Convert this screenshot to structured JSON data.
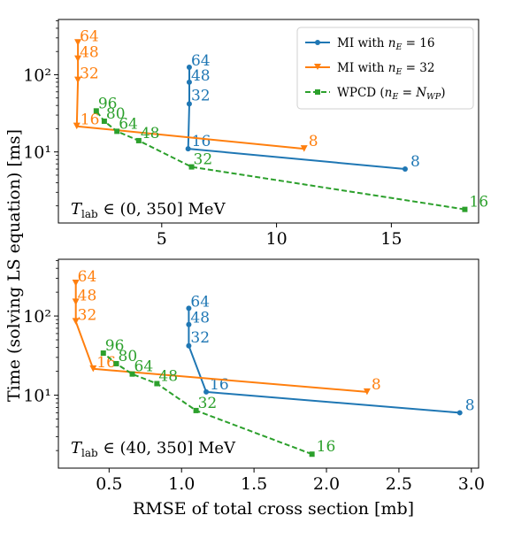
{
  "chart_data": [
    {
      "type": "line",
      "xscale": "linear",
      "yscale": "log",
      "xlim": [
        0.5,
        18.8
      ],
      "ylim": [
        1.2,
        520
      ],
      "xticks": [
        5,
        10,
        15
      ],
      "xtick_labels": [
        "5",
        "10",
        "15"
      ],
      "yticks": [
        10,
        100
      ],
      "ytick_labels": [
        "10¹",
        "10²"
      ],
      "annotation": "T_lab ∈ (0, 350] MeV",
      "legend": {
        "position": "top-right",
        "entries": [
          "MI with n_E = 16",
          "MI with n_E = 32",
          "WPCD (n_E = N_WP)"
        ]
      },
      "series": [
        {
          "name": "MI with n_E = 16",
          "color": "#1f77b4",
          "marker": "circle",
          "linestyle": "solid",
          "points": [
            {
              "x": 15.6,
              "y": 6.0,
              "label": "8"
            },
            {
              "x": 6.15,
              "y": 11.0,
              "label": "16"
            },
            {
              "x": 6.2,
              "y": 42,
              "label": "32"
            },
            {
              "x": 6.2,
              "y": 80,
              "label": "48"
            },
            {
              "x": 6.2,
              "y": 125,
              "label": "64"
            }
          ]
        },
        {
          "name": "MI with n_E = 32",
          "color": "#ff7f0e",
          "marker": "triangle-down",
          "linestyle": "solid",
          "points": [
            {
              "x": 11.2,
              "y": 11.0,
              "label": "8"
            },
            {
              "x": 1.3,
              "y": 21.5,
              "label": "16"
            },
            {
              "x": 1.35,
              "y": 85,
              "label": "32"
            },
            {
              "x": 1.35,
              "y": 160,
              "label": "48"
            },
            {
              "x": 1.35,
              "y": 260,
              "label": "64"
            }
          ]
        },
        {
          "name": "WPCD (n_E = N_WP)",
          "color": "#2ca02c",
          "marker": "square",
          "linestyle": "dashed",
          "points": [
            {
              "x": 18.2,
              "y": 1.8,
              "label": "16"
            },
            {
              "x": 6.3,
              "y": 6.4,
              "label": "32"
            },
            {
              "x": 4.0,
              "y": 14.0,
              "label": "48"
            },
            {
              "x": 3.05,
              "y": 18.5,
              "label": "64"
            },
            {
              "x": 2.5,
              "y": 25,
              "label": "80"
            },
            {
              "x": 2.15,
              "y": 34,
              "label": "96"
            }
          ]
        }
      ]
    },
    {
      "type": "line",
      "xscale": "linear",
      "yscale": "log",
      "xlim": [
        0.15,
        3.05
      ],
      "ylim": [
        1.2,
        520
      ],
      "xticks": [
        0.5,
        1.0,
        1.5,
        2.0,
        2.5,
        3.0
      ],
      "xtick_labels": [
        "0.5",
        "1.0",
        "1.5",
        "2.0",
        "2.5",
        "3.0"
      ],
      "yticks": [
        10,
        100
      ],
      "ytick_labels": [
        "10¹",
        "10²"
      ],
      "annotation": "T_lab ∈ (40, 350] MeV",
      "series": [
        {
          "name": "MI with n_E = 16",
          "color": "#1f77b4",
          "marker": "circle",
          "linestyle": "solid",
          "points": [
            {
              "x": 2.92,
              "y": 6.0,
              "label": "8"
            },
            {
              "x": 1.17,
              "y": 11.0,
              "label": "16"
            },
            {
              "x": 1.05,
              "y": 42,
              "label": "32"
            },
            {
              "x": 1.05,
              "y": 78,
              "label": "48"
            },
            {
              "x": 1.05,
              "y": 125,
              "label": "64"
            }
          ]
        },
        {
          "name": "MI with n_E = 32",
          "color": "#ff7f0e",
          "marker": "triangle-down",
          "linestyle": "solid",
          "points": [
            {
              "x": 2.28,
              "y": 11.0,
              "label": "8"
            },
            {
              "x": 0.39,
              "y": 21.5,
              "label": "16"
            },
            {
              "x": 0.27,
              "y": 85,
              "label": "32"
            },
            {
              "x": 0.27,
              "y": 150,
              "label": "48"
            },
            {
              "x": 0.27,
              "y": 260,
              "label": "64"
            }
          ]
        },
        {
          "name": "WPCD (n_E = N_WP)",
          "color": "#2ca02c",
          "marker": "square",
          "linestyle": "dashed",
          "points": [
            {
              "x": 1.9,
              "y": 1.8,
              "label": "16"
            },
            {
              "x": 1.1,
              "y": 6.4,
              "label": "32"
            },
            {
              "x": 0.83,
              "y": 14.0,
              "label": "48"
            },
            {
              "x": 0.66,
              "y": 18.5,
              "label": "64"
            },
            {
              "x": 0.55,
              "y": 25,
              "label": "80"
            },
            {
              "x": 0.46,
              "y": 34,
              "label": "96"
            }
          ]
        }
      ]
    }
  ],
  "ylabel": "Time (solving LS equation) [ms]",
  "xlabel": "RMSE of total cross section [mb]"
}
